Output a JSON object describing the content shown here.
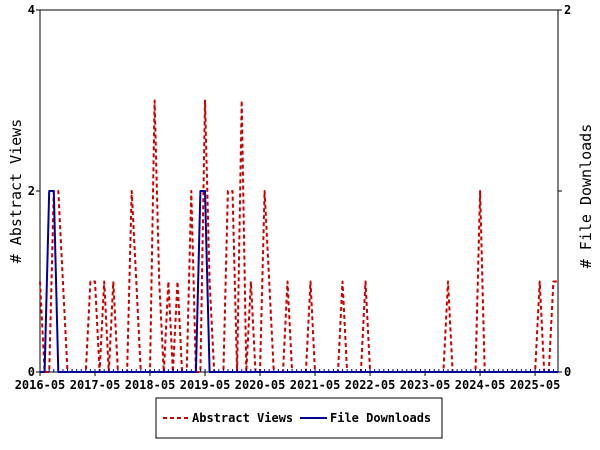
{
  "chart_data": {
    "type": "line",
    "title": "",
    "x_tick_labels": [
      "2016-05",
      "2017-05",
      "2018-05",
      "2019-05",
      "2020-05",
      "2021-05",
      "2022-05",
      "2023-05",
      "2024-05",
      "2025-05"
    ],
    "x_range": [
      "2016-05",
      "2025-10"
    ],
    "y_left": {
      "label": "# Abstract Views",
      "range": [
        0,
        4
      ],
      "ticks": [
        "0",
        "2",
        "4"
      ]
    },
    "y_right": {
      "label": "# File Downloads",
      "range": [
        0,
        2
      ],
      "ticks": [
        "0",
        "1",
        "2"
      ]
    },
    "grid": false,
    "legend_position": "bottom-center",
    "series": [
      {
        "name": "Abstract Views",
        "axis": "left",
        "color": "#cc0000",
        "style": "dashed",
        "points": [
          [
            "2016-05",
            1
          ],
          [
            "2016-06",
            0
          ],
          [
            "2016-07",
            0
          ],
          [
            "2016-08",
            2
          ],
          [
            "2016-09",
            2
          ],
          [
            "2016-10",
            1
          ],
          [
            "2016-11",
            0
          ],
          [
            "2016-12",
            0
          ],
          [
            "2017-01",
            0
          ],
          [
            "2017-02",
            0
          ],
          [
            "2017-03",
            0
          ],
          [
            "2017-04",
            1
          ],
          [
            "2017-05",
            1
          ],
          [
            "2017-06",
            0
          ],
          [
            "2017-07",
            1
          ],
          [
            "2017-08",
            0
          ],
          [
            "2017-09",
            1
          ],
          [
            "2017-10",
            0
          ],
          [
            "2017-11",
            0
          ],
          [
            "2017-12",
            0
          ],
          [
            "2018-01",
            2
          ],
          [
            "2018-02",
            1
          ],
          [
            "2018-03",
            0
          ],
          [
            "2018-04",
            0
          ],
          [
            "2018-05",
            0
          ],
          [
            "2018-06",
            3
          ],
          [
            "2018-07",
            1
          ],
          [
            "2018-08",
            0
          ],
          [
            "2018-09",
            1
          ],
          [
            "2018-10",
            0
          ],
          [
            "2018-11",
            1
          ],
          [
            "2018-12",
            0
          ],
          [
            "2019-01",
            0
          ],
          [
            "2019-02",
            2
          ],
          [
            "2019-03",
            0
          ],
          [
            "2019-04",
            0
          ],
          [
            "2019-05",
            3
          ],
          [
            "2019-06",
            1
          ],
          [
            "2019-07",
            0
          ],
          [
            "2019-08",
            0
          ],
          [
            "2019-09",
            0
          ],
          [
            "2019-10",
            2
          ],
          [
            "2019-11",
            2
          ],
          [
            "2019-12",
            0
          ],
          [
            "2020-01",
            3
          ],
          [
            "2020-02",
            0
          ],
          [
            "2020-03",
            1
          ],
          [
            "2020-04",
            0
          ],
          [
            "2020-05",
            0
          ],
          [
            "2020-06",
            2
          ],
          [
            "2020-07",
            1
          ],
          [
            "2020-08",
            0
          ],
          [
            "2020-09",
            0
          ],
          [
            "2020-10",
            0
          ],
          [
            "2020-11",
            1
          ],
          [
            "2020-12",
            0
          ],
          [
            "2021-01",
            0
          ],
          [
            "2021-02",
            0
          ],
          [
            "2021-03",
            0
          ],
          [
            "2021-04",
            1
          ],
          [
            "2021-05",
            0
          ],
          [
            "2021-06",
            0
          ],
          [
            "2021-07",
            0
          ],
          [
            "2021-08",
            0
          ],
          [
            "2021-09",
            0
          ],
          [
            "2021-10",
            0
          ],
          [
            "2021-11",
            1
          ],
          [
            "2021-12",
            0
          ],
          [
            "2022-01",
            0
          ],
          [
            "2022-02",
            0
          ],
          [
            "2022-03",
            0
          ],
          [
            "2022-04",
            1
          ],
          [
            "2022-05",
            0
          ],
          [
            "2022-06",
            0
          ],
          [
            "2022-07",
            0
          ],
          [
            "2022-08",
            0
          ],
          [
            "2022-09",
            0
          ],
          [
            "2022-10",
            0
          ],
          [
            "2022-11",
            0
          ],
          [
            "2022-12",
            0
          ],
          [
            "2023-01",
            0
          ],
          [
            "2023-02",
            0
          ],
          [
            "2023-03",
            0
          ],
          [
            "2023-04",
            0
          ],
          [
            "2023-05",
            0
          ],
          [
            "2023-06",
            0
          ],
          [
            "2023-07",
            0
          ],
          [
            "2023-08",
            0
          ],
          [
            "2023-09",
            0
          ],
          [
            "2023-10",
            1
          ],
          [
            "2023-11",
            0
          ],
          [
            "2023-12",
            0
          ],
          [
            "2024-01",
            0
          ],
          [
            "2024-02",
            0
          ],
          [
            "2024-03",
            0
          ],
          [
            "2024-04",
            0
          ],
          [
            "2024-05",
            2
          ],
          [
            "2024-06",
            0
          ],
          [
            "2024-07",
            0
          ],
          [
            "2024-08",
            0
          ],
          [
            "2024-09",
            0
          ],
          [
            "2024-10",
            0
          ],
          [
            "2024-11",
            0
          ],
          [
            "2024-12",
            0
          ],
          [
            "2025-01",
            0
          ],
          [
            "2025-02",
            0
          ],
          [
            "2025-03",
            0
          ],
          [
            "2025-04",
            0
          ],
          [
            "2025-05",
            0
          ],
          [
            "2025-06",
            1
          ],
          [
            "2025-07",
            0
          ],
          [
            "2025-08",
            0
          ],
          [
            "2025-09",
            1
          ],
          [
            "2025-10",
            1
          ]
        ]
      },
      {
        "name": "File Downloads",
        "axis": "right",
        "color": "#000099",
        "style": "solid",
        "points": [
          [
            "2016-05",
            0
          ],
          [
            "2016-06",
            0
          ],
          [
            "2016-07",
            1
          ],
          [
            "2016-08",
            1
          ],
          [
            "2016-09",
            0
          ],
          [
            "2016-10",
            0
          ],
          [
            "2019-02",
            0
          ],
          [
            "2019-03",
            0
          ],
          [
            "2019-04",
            1
          ],
          [
            "2019-05",
            1
          ],
          [
            "2019-06",
            0
          ],
          [
            "2019-07",
            0
          ],
          [
            "2025-10",
            0
          ]
        ]
      }
    ]
  }
}
